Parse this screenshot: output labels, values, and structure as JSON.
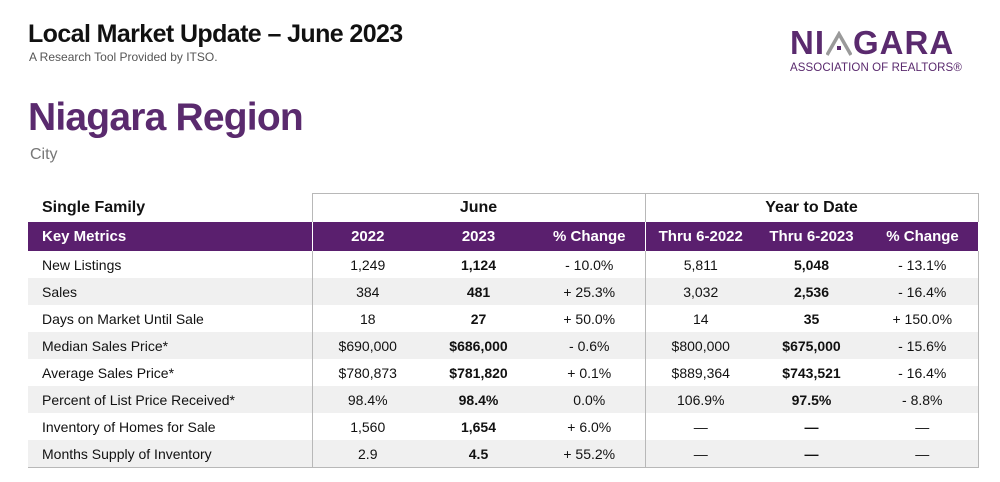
{
  "header": {
    "title": "Local Market Update – June 2023",
    "subtitle": "A Research Tool Provided by ITSO."
  },
  "logo": {
    "word_left": "NI",
    "word_right": "GARA",
    "tagline": "ASSOCIATION OF REALTORS®",
    "color": "#5a2a6e",
    "icon": "house-roof-icon"
  },
  "region": {
    "name": "Niagara Region",
    "type": "City"
  },
  "table": {
    "category": "Single Family",
    "groups": {
      "month": "June",
      "ytd": "Year to Date"
    },
    "columns": [
      "Key Metrics",
      "2022",
      "2023",
      "% Change",
      "Thru 6-2022",
      "Thru 6-2023",
      "% Change"
    ],
    "header_color": "#5a1f6e",
    "rows": [
      {
        "metric": "New Listings",
        "m2022": "1,249",
        "m2023": "1,124",
        "mchg": "- 10.0%",
        "y2022": "5,811",
        "y2023": "5,048",
        "ychg": "- 13.1%"
      },
      {
        "metric": "Sales",
        "m2022": "384",
        "m2023": "481",
        "mchg": "+ 25.3%",
        "y2022": "3,032",
        "y2023": "2,536",
        "ychg": "- 16.4%"
      },
      {
        "metric": "Days on Market Until Sale",
        "m2022": "18",
        "m2023": "27",
        "mchg": "+ 50.0%",
        "y2022": "14",
        "y2023": "35",
        "ychg": "+ 150.0%"
      },
      {
        "metric": "Median Sales Price*",
        "m2022": "$690,000",
        "m2023": "$686,000",
        "mchg": "- 0.6%",
        "y2022": "$800,000",
        "y2023": "$675,000",
        "ychg": "- 15.6%"
      },
      {
        "metric": "Average Sales Price*",
        "m2022": "$780,873",
        "m2023": "$781,820",
        "mchg": "+ 0.1%",
        "y2022": "$889,364",
        "y2023": "$743,521",
        "ychg": "- 16.4%"
      },
      {
        "metric": "Percent of List Price Received*",
        "m2022": "98.4%",
        "m2023": "98.4%",
        "mchg": "0.0%",
        "y2022": "106.9%",
        "y2023": "97.5%",
        "ychg": "- 8.8%"
      },
      {
        "metric": "Inventory of Homes for Sale",
        "m2022": "1,560",
        "m2023": "1,654",
        "mchg": "+ 6.0%",
        "y2022": "—",
        "y2023": "—",
        "ychg": "—"
      },
      {
        "metric": "Months Supply of Inventory",
        "m2022": "2.9",
        "m2023": "4.5",
        "mchg": "+ 55.2%",
        "y2022": "—",
        "y2023": "—",
        "ychg": "—"
      }
    ]
  }
}
